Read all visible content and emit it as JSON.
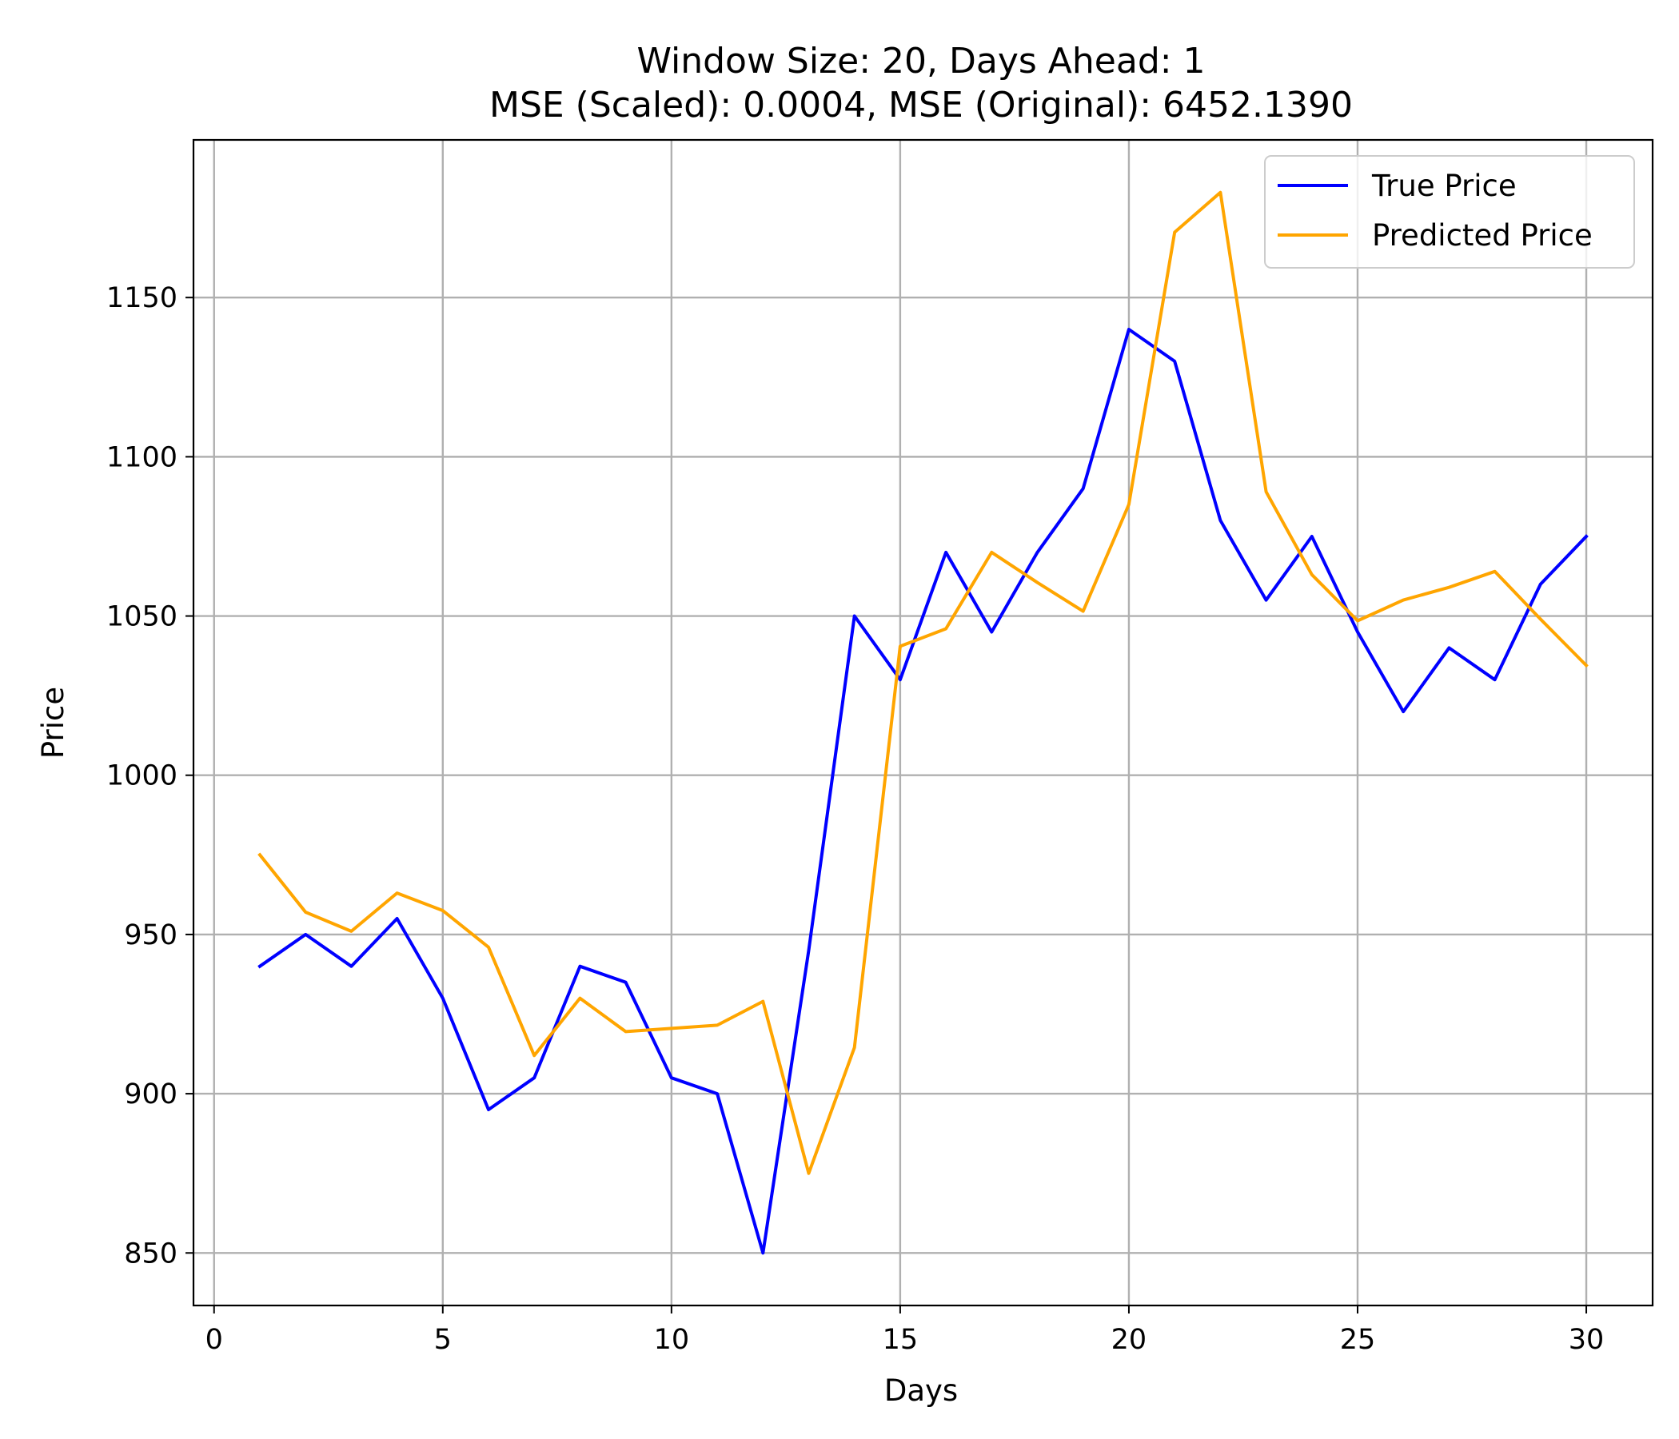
{
  "chart_data": {
    "type": "line",
    "title": "Window Size: 20, Days Ahead: 1",
    "subtitle": "MSE (Scaled): 0.0004, MSE (Original): 6452.1390",
    "xlabel": "Days",
    "ylabel": "Price",
    "xlim": [
      -0.45,
      31.45
    ],
    "ylim": [
      833.5,
      1199.5
    ],
    "xticks": [
      0,
      5,
      10,
      15,
      20,
      25,
      30
    ],
    "yticks": [
      850,
      900,
      950,
      1000,
      1050,
      1100,
      1150
    ],
    "grid": true,
    "legend_position": "top-right",
    "x": [
      1,
      2,
      3,
      4,
      5,
      6,
      7,
      8,
      9,
      10,
      11,
      12,
      13,
      14,
      15,
      16,
      17,
      18,
      19,
      20,
      21,
      22,
      23,
      24,
      25,
      26,
      27,
      28,
      29,
      30
    ],
    "series": [
      {
        "name": "True Price",
        "color": "#0000ff",
        "values": [
          940,
          950,
          940,
          955,
          930,
          895,
          905,
          940,
          935,
          905,
          900,
          850,
          945,
          1050,
          1030,
          1070,
          1045,
          1070,
          1090,
          1140,
          1130,
          1080,
          1055,
          1075,
          1045,
          1020,
          1040,
          1030,
          1060,
          1075
        ]
      },
      {
        "name": "Predicted Price",
        "color": "#ffa500",
        "values": [
          975,
          957,
          951,
          963,
          957.5,
          946,
          912,
          930,
          919.5,
          920.5,
          921.5,
          929,
          875,
          914.5,
          1040.5,
          1046,
          1070,
          1060.5,
          1051.5,
          1085,
          1170.5,
          1183,
          1089,
          1063,
          1048.5,
          1055,
          1059,
          1064,
          1049,
          1034.5
        ]
      }
    ]
  }
}
